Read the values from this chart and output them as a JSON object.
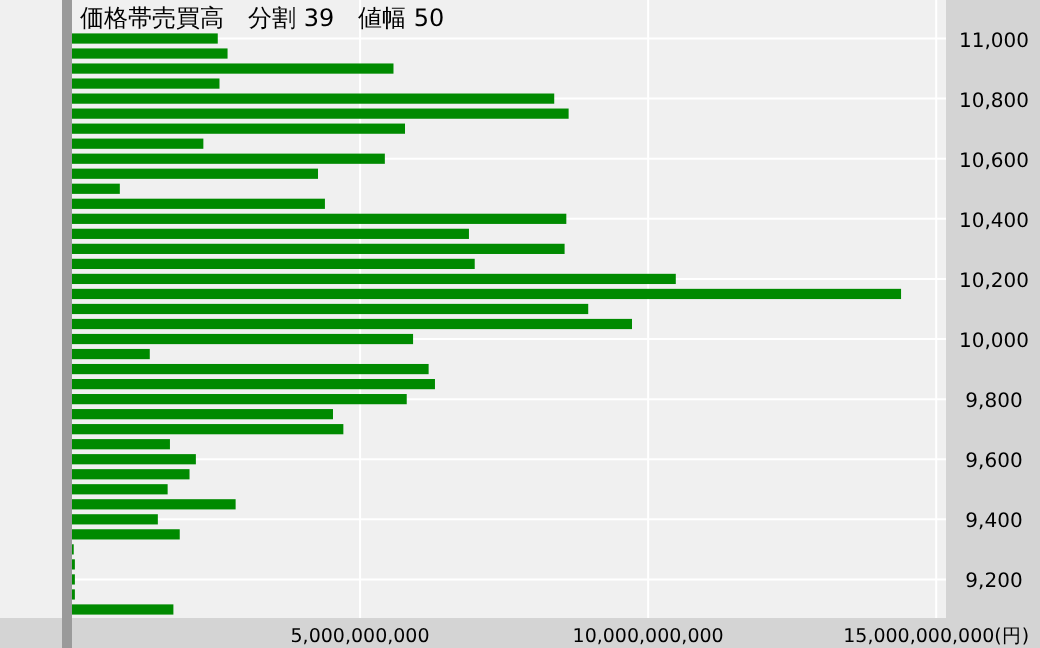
{
  "chart_data": {
    "type": "bar",
    "orientation": "horizontal",
    "title": "価格帯売買高　分割 39　値幅 50",
    "categories": [
      "11,000",
      null,
      null,
      null,
      "10,800",
      null,
      null,
      null,
      "10,600",
      null,
      null,
      null,
      "10,400",
      null,
      null,
      null,
      "10,200",
      null,
      null,
      null,
      "10,000",
      null,
      null,
      null,
      "9,800",
      null,
      null,
      null,
      "9,600",
      null,
      null,
      null,
      "9,400",
      null,
      null,
      null,
      "9,200",
      null,
      null
    ],
    "values": [
      2530000000,
      2700000000,
      5580000000,
      2560000000,
      8370000000,
      8620000000,
      5780000000,
      2280000000,
      5430000000,
      4270000000,
      830000000,
      4390000000,
      8580000000,
      6890000000,
      8550000000,
      6990000000,
      10480000000,
      14390000000,
      8960000000,
      9720000000,
      5920000000,
      1350000000,
      6190000000,
      6300000000,
      5810000000,
      4530000000,
      4710000000,
      1700000000,
      2150000000,
      2040000000,
      1660000000,
      2840000000,
      1490000000,
      1870000000,
      30000000,
      50000000,
      50000000,
      50000000,
      1760000000
    ],
    "color": "#008a00",
    "xlim": [
      0,
      15170000000
    ],
    "xticks": [
      {
        "value": 5000000000,
        "label": "5,000,000,000"
      },
      {
        "value": 10000000000,
        "label": "10,000,000,000"
      },
      {
        "value": 15000000000,
        "label": "15,000,000,000(円)"
      }
    ],
    "grid": true
  }
}
